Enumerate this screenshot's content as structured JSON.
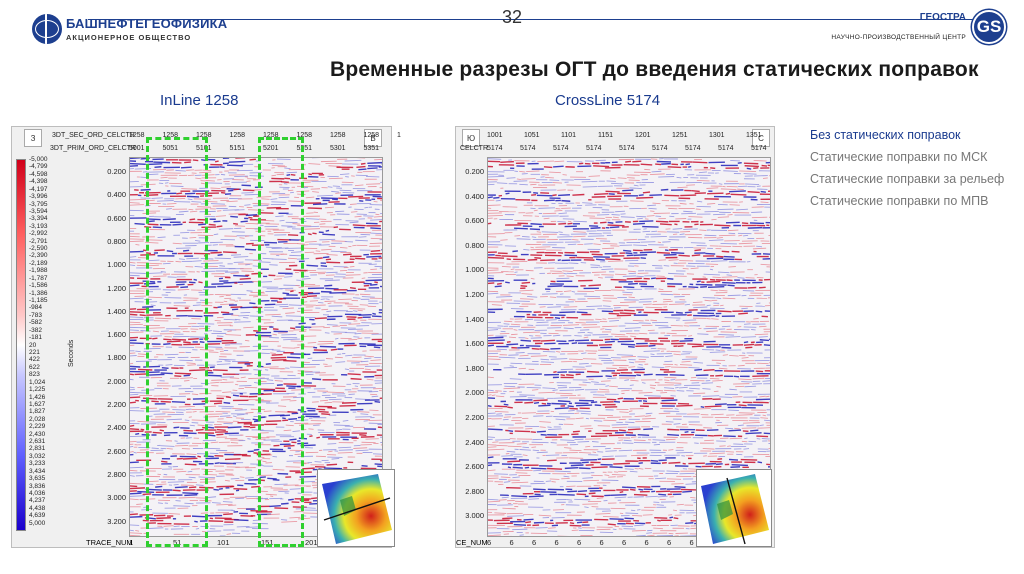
{
  "header": {
    "company_left": "БАШНЕФТЕГЕОФИЗИКА",
    "company_left_sub": "АКЦИОНЕРНОЕ ОБЩЕСТВО",
    "page_number": "32",
    "company_right": "ГЕОСТРА",
    "company_right_sub": "НАУЧНО-ПРОИЗВОДСТВЕННЫЙ ЦЕНТР",
    "company_right_logo": "GS"
  },
  "title": "Временные разрезы ОГТ до введения статических поправок",
  "inline_label": "InLine 1258",
  "crossline_label": "CrossLine 5174",
  "legend": [
    {
      "label": "Без статических поправок",
      "active": true
    },
    {
      "label": "Статические поправки по МСК",
      "active": false
    },
    {
      "label": "Статические поправки за рельеф",
      "active": false
    },
    {
      "label": "Статические поправки по МПВ",
      "active": false
    }
  ],
  "left_panel": {
    "dir_left": "З",
    "dir_right": "В",
    "row1_label": "3DT_SEC_ORD_CELCTR",
    "row1_values": [
      "1258",
      "1258",
      "1258",
      "1258",
      "1258",
      "1258",
      "1258",
      "1258",
      "1"
    ],
    "row2_label": "3DT_PRIM_ORD_CELCTR",
    "row2_values": [
      "5001",
      "5051",
      "5101",
      "5151",
      "5201",
      "5251",
      "5301",
      "5351"
    ],
    "y_axis_label": "Seconds",
    "y_ticks": [
      "0.200",
      "0.400",
      "0.600",
      "0.800",
      "1.000",
      "1.200",
      "1.400",
      "1.600",
      "1.800",
      "2.000",
      "2.200",
      "2.400",
      "2.600",
      "2.800",
      "3.000",
      "3.200"
    ],
    "x_label": "TRACE_NUM",
    "x_ticks": [
      "1",
      "51",
      "101",
      "151",
      "201",
      "251"
    ],
    "color_scale": [
      "-5,000",
      "-4,799",
      "-4,598",
      "-4,398",
      "-4,197",
      "-3,996",
      "-3,795",
      "-3,594",
      "-3,394",
      "-3,193",
      "-2,992",
      "-2,791",
      "-2,590",
      "-2,390",
      "-2,189",
      "-1,988",
      "-1,787",
      "-1,586",
      "-1,386",
      "-1,185",
      "-984",
      "-783",
      "-582",
      "-382",
      "-181",
      "20",
      "221",
      "422",
      "622",
      "823",
      "1,024",
      "1,225",
      "1,426",
      "1,627",
      "1,827",
      "2,028",
      "2,229",
      "2,430",
      "2,631",
      "2,831",
      "3,032",
      "3,233",
      "3,434",
      "3,635",
      "3,836",
      "4,036",
      "4,237",
      "4,438",
      "4,639",
      "5,000"
    ]
  },
  "right_panel": {
    "dir_left": "Ю",
    "dir_right": "С",
    "row1_values": [
      "1001",
      "1051",
      "1101",
      "1151",
      "1201",
      "1251",
      "1301",
      "1351"
    ],
    "row2_label": "CELCTR",
    "row2_values": [
      "5174",
      "5174",
      "5174",
      "5174",
      "5174",
      "5174",
      "5174",
      "5174",
      "5174"
    ],
    "y_ticks": [
      "0.200",
      "0.400",
      "0.600",
      "0.800",
      "1.000",
      "1.200",
      "1.400",
      "1.600",
      "1.800",
      "2.000",
      "2.200",
      "2.400",
      "2.600",
      "2.800",
      "3.000"
    ],
    "x_label": "CE_NUM",
    "x_ticks": [
      "6",
      "6",
      "6",
      "6",
      "6",
      "6",
      "6",
      "6",
      "6",
      "6",
      "6",
      "6"
    ]
  },
  "colors": {
    "brand_blue": "#1d3f8f",
    "highlight_green": "#2fd02f",
    "seismic_positive": "#d0001a",
    "seismic_negative": "#1a00cc"
  }
}
